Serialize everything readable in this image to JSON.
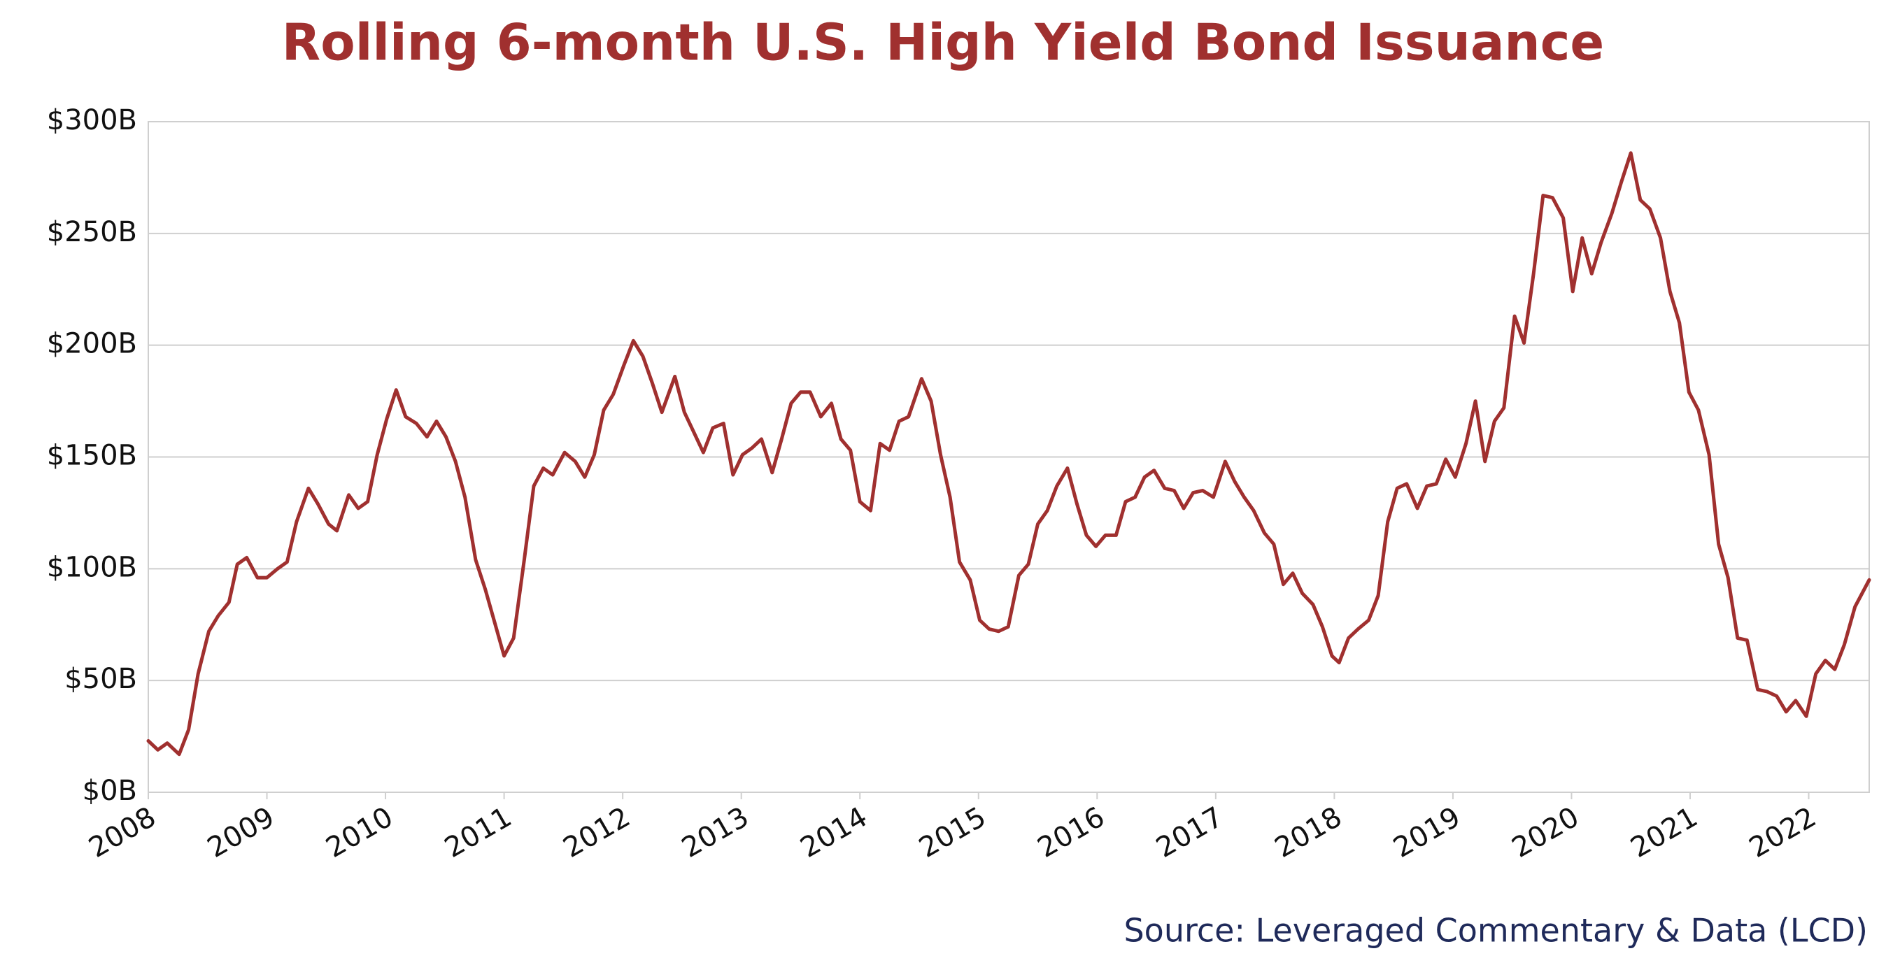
{
  "chart_data": {
    "type": "line",
    "title": "Rolling 6-month U.S. High Yield Bond Issuance",
    "source": "Source: Leveraged Commentary & Data (LCD)",
    "xlim": [
      2008,
      2022.51
    ],
    "xticks": [
      2008,
      2009,
      2010,
      2011,
      2012,
      2013,
      2014,
      2015,
      2016,
      2017,
      2018,
      2019,
      2020,
      2021,
      2022
    ],
    "ylim": [
      0,
      300
    ],
    "yticks": [
      {
        "value": 0,
        "label": "$0B"
      },
      {
        "value": 50,
        "label": "$50B"
      },
      {
        "value": 100,
        "label": "$100B"
      },
      {
        "value": 150,
        "label": "$150B"
      },
      {
        "value": 200,
        "label": "$200B"
      },
      {
        "value": 250,
        "label": "$250B"
      },
      {
        "value": 300,
        "label": "$300B"
      }
    ],
    "grid": true,
    "x": [
      2008.0,
      2008.08,
      2008.16,
      2008.26,
      2008.34,
      2008.42,
      2008.51,
      2008.59,
      2008.68,
      2008.75,
      2008.83,
      2008.92,
      2009.0,
      2009.09,
      2009.17,
      2009.25,
      2009.35,
      2009.43,
      2009.52,
      2009.59,
      2009.69,
      2009.77,
      2009.85,
      2009.93,
      2010.01,
      2010.09,
      2010.17,
      2010.26,
      2010.35,
      2010.43,
      2010.51,
      2010.59,
      2010.67,
      2010.76,
      2010.84,
      2010.92,
      2011.0,
      2011.08,
      2011.17,
      2011.25,
      2011.33,
      2011.41,
      2011.51,
      2011.6,
      2011.68,
      2011.76,
      2011.84,
      2011.92,
      2012.01,
      2012.09,
      2012.17,
      2012.25,
      2012.33,
      2012.44,
      2012.52,
      2012.6,
      2012.68,
      2012.76,
      2012.85,
      2012.93,
      2013.01,
      2013.09,
      2013.17,
      2013.26,
      2013.34,
      2013.42,
      2013.5,
      2013.58,
      2013.67,
      2013.76,
      2013.84,
      2013.92,
      2014.0,
      2014.09,
      2014.17,
      2014.25,
      2014.33,
      2014.41,
      2014.52,
      2014.6,
      2014.68,
      2014.76,
      2014.84,
      2014.93,
      2015.01,
      2015.09,
      2015.17,
      2015.25,
      2015.34,
      2015.42,
      2015.5,
      2015.58,
      2015.66,
      2015.75,
      2015.83,
      2015.91,
      2015.99,
      2016.07,
      2016.16,
      2016.24,
      2016.32,
      2016.4,
      2016.48,
      2016.57,
      2016.65,
      2016.73,
      2016.81,
      2016.89,
      2016.98,
      2017.08,
      2017.16,
      2017.24,
      2017.32,
      2017.41,
      2017.49,
      2017.57,
      2017.65,
      2017.73,
      2017.82,
      2017.9,
      2017.98,
      2018.04,
      2018.12,
      2018.2,
      2018.29,
      2018.37,
      2018.45,
      2018.53,
      2018.61,
      2018.7,
      2018.78,
      2018.86,
      2018.94,
      2019.02,
      2019.11,
      2019.19,
      2019.27,
      2019.35,
      2019.43,
      2019.52,
      2019.6,
      2019.68,
      2019.76,
      2019.84,
      2019.93,
      2020.01,
      2020.09,
      2020.17,
      2020.25,
      2020.34,
      2020.42,
      2020.5,
      2020.58,
      2020.66,
      2020.75,
      2020.83,
      2020.91,
      2020.99,
      2021.07,
      2021.16,
      2021.24,
      2021.32,
      2021.4,
      2021.48,
      2021.57,
      2021.65,
      2021.73,
      2021.81,
      2021.89,
      2021.98,
      2022.06,
      2022.14,
      2022.22,
      2022.3,
      2022.39,
      2022.51
    ],
    "series": [
      {
        "color": "#a0302f",
        "values": [
          23,
          19,
          22,
          17,
          28,
          53,
          72,
          79,
          85,
          102,
          105,
          96,
          96,
          100,
          103,
          121,
          136,
          129,
          120,
          117,
          133,
          127,
          130,
          151,
          167,
          180,
          168,
          165,
          159,
          166,
          159,
          148,
          132,
          104,
          91,
          76,
          61,
          69,
          104,
          137,
          145,
          142,
          152,
          148,
          141,
          151,
          171,
          178,
          191,
          202,
          195,
          183,
          170,
          186,
          170,
          161,
          152,
          163,
          165,
          142,
          151,
          154,
          158,
          143,
          158,
          174,
          179,
          179,
          168,
          174,
          158,
          153,
          130,
          126,
          156,
          153,
          166,
          168,
          185,
          175,
          151,
          132,
          103,
          95,
          77,
          73,
          72,
          74,
          97,
          102,
          120,
          126,
          137,
          145,
          129,
          115,
          110,
          115,
          115,
          130,
          132,
          141,
          144,
          136,
          135,
          127,
          134,
          135,
          132,
          148,
          139,
          132,
          126,
          116,
          111,
          93,
          98,
          89,
          84,
          74,
          61,
          58,
          69,
          73,
          77,
          88,
          121,
          136,
          138,
          127,
          137,
          138,
          149,
          141,
          156,
          175,
          148,
          166,
          172,
          213,
          201,
          232,
          267,
          266,
          257,
          224,
          248,
          232,
          246,
          259,
          273,
          286,
          265,
          261,
          248,
          224,
          210,
          179,
          171,
          151,
          111,
          96,
          69,
          68,
          46,
          45,
          43,
          36,
          41,
          34,
          53,
          59,
          55,
          66,
          83,
          95
        ]
      }
    ]
  }
}
